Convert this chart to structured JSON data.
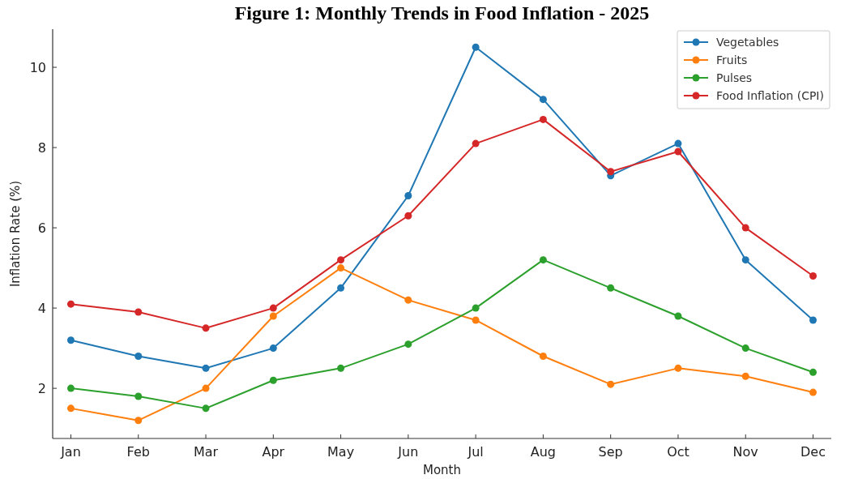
{
  "chart_data": {
    "type": "line",
    "title": "Figure 1: Monthly Trends in Food Inflation - 2025",
    "xlabel": "Month",
    "ylabel": "Inflation Rate (%)",
    "categories": [
      "Jan",
      "Feb",
      "Mar",
      "Apr",
      "May",
      "Jun",
      "Jul",
      "Aug",
      "Sep",
      "Oct",
      "Nov",
      "Dec"
    ],
    "series": [
      {
        "name": "Vegetables",
        "color": "#1f77b4",
        "values": [
          3.2,
          2.8,
          2.5,
          3.0,
          4.5,
          6.8,
          10.5,
          9.2,
          7.3,
          8.1,
          5.2,
          3.7
        ]
      },
      {
        "name": "Fruits",
        "color": "#ff7f0e",
        "values": [
          1.5,
          1.2,
          2.0,
          3.8,
          5.0,
          4.2,
          3.7,
          2.8,
          2.1,
          2.5,
          2.3,
          1.9
        ]
      },
      {
        "name": "Pulses",
        "color": "#2ca02c",
        "values": [
          2.0,
          1.8,
          1.5,
          2.2,
          2.5,
          3.1,
          4.0,
          5.2,
          4.5,
          3.8,
          3.0,
          2.4
        ]
      },
      {
        "name": "Food Inflation (CPI)",
        "color": "#d62728",
        "values": [
          4.1,
          3.9,
          3.5,
          4.0,
          5.2,
          6.3,
          8.1,
          8.7,
          7.4,
          7.9,
          6.0,
          4.8
        ]
      }
    ],
    "ylim": [
      0.75,
      10.95
    ],
    "yticks": [
      2,
      4,
      6,
      8,
      10
    ],
    "legend": "top right",
    "marker": "circle",
    "line_style": "solid",
    "grid": false
  }
}
